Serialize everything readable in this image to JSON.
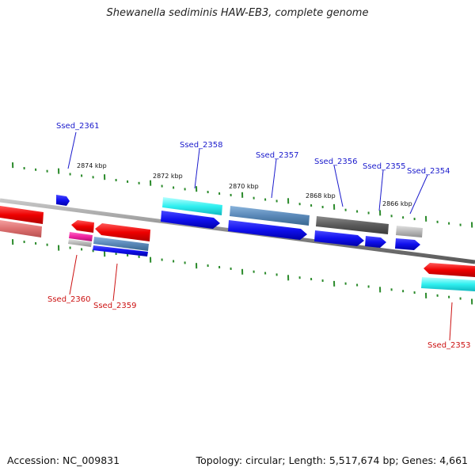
{
  "title": "Shewanella sediminis HAW-EB3, complete genome",
  "accession": "Accession: NC_009831",
  "stats": "Topology: circular; Length: 5,517,674 bp; Genes: 4,661",
  "colors": {
    "forward_label": "#1a1acc",
    "reverse_label": "#cc1111",
    "tick": "#2a8a2a",
    "backbone": "#8a8a8a"
  },
  "ruler": [
    {
      "label": "2874 kbp"
    },
    {
      "label": "2872 kbp"
    },
    {
      "label": "2870 kbp"
    },
    {
      "label": "2868 kbp"
    },
    {
      "label": "2866 kbp"
    }
  ],
  "gene_labels": [
    {
      "name": "Ssed_2361",
      "strand": "forward"
    },
    {
      "name": "Ssed_2358",
      "strand": "forward"
    },
    {
      "name": "Ssed_2357",
      "strand": "forward"
    },
    {
      "name": "Ssed_2356",
      "strand": "forward"
    },
    {
      "name": "Ssed_2355",
      "strand": "forward"
    },
    {
      "name": "Ssed_2354",
      "strand": "forward"
    },
    {
      "name": "Ssed_2360",
      "strand": "reverse"
    },
    {
      "name": "Ssed_2359",
      "strand": "reverse"
    },
    {
      "name": "Ssed_2353",
      "strand": "reverse"
    }
  ]
}
